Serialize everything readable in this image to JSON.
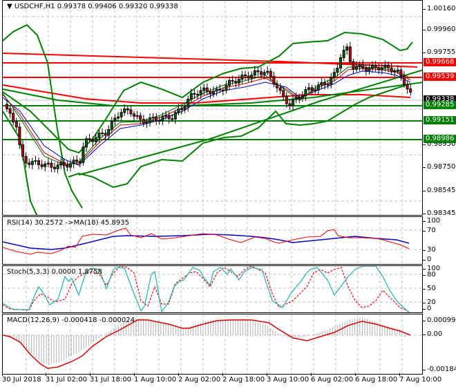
{
  "main": {
    "symbol_label": "USDCHF,H1",
    "ohlc": "0.99378 0.99406 0.99320 0.99338",
    "price_ticks": [
      "1.00160",
      "0.99960",
      "0.99755",
      "0.98950",
      "0.98750",
      "0.98545",
      "0.98345"
    ],
    "price_badges": [
      {
        "value": "0.99668",
        "color": "#ff0000"
      },
      {
        "value": "0.99539",
        "color": "#ff0000"
      },
      {
        "value": "0.99338",
        "color": "#000000"
      },
      {
        "value": "0.99285",
        "color": "#008000"
      },
      {
        "value": "0.99151",
        "color": "#008000"
      },
      {
        "value": "0.98986",
        "color": "#008000"
      }
    ]
  },
  "rsi": {
    "label": "RSI(14) 30.2572  ->MA(18) 45.8935",
    "ticks": [
      "100",
      "70",
      "30",
      "0"
    ]
  },
  "stoch": {
    "label": "Stoch(5,3,3) 0.0000 1.8758",
    "ticks": [
      "100",
      "80",
      "50",
      "20",
      "0"
    ]
  },
  "macd": {
    "label": "MACD(12,26,9) -0.000418 -0.000024",
    "ticks": [
      "0.000992",
      "0.00",
      "-0.001841"
    ]
  },
  "xaxis": {
    "labels": [
      "30 Jul 2018",
      "31 Jul 02:00",
      "31 Jul 18:00",
      "1 Aug 10:00",
      "2 Aug 02:00",
      "2 Aug 18:00",
      "3 Aug 10:00",
      "6 Aug 02:00",
      "6 Aug 18:00",
      "7 Aug 10:00"
    ]
  },
  "chart_data": [
    {
      "type": "candlestick",
      "title": "USDCHF,H1",
      "ylim": [
        0.983,
        1.0018
      ],
      "x": [
        "30 Jul 2018",
        "31 Jul 02:00",
        "31 Jul 18:00",
        "1 Aug 10:00",
        "2 Aug 02:00",
        "2 Aug 18:00",
        "3 Aug 10:00",
        "6 Aug 02:00",
        "6 Aug 18:00",
        "7 Aug 10:00"
      ],
      "approx_close": [
        0.9935,
        0.988,
        0.9905,
        0.991,
        0.992,
        0.9945,
        0.9925,
        0.9965,
        0.9955,
        0.9934
      ],
      "last_ohlc": {
        "open": 0.99378,
        "high": 0.99406,
        "low": 0.9932,
        "close": 0.99338
      },
      "horizontal_levels": {
        "resistance_red": [
          0.99668,
          0.99539
        ],
        "support_green": [
          0.99285,
          0.99151,
          0.98986
        ]
      },
      "overlays": [
        "Bollinger Bands (green)",
        "Moving averages (red/blue/green)",
        "Trend lines"
      ]
    },
    {
      "type": "line",
      "title": "RSI(14)",
      "ylim": [
        0,
        100
      ],
      "series": [
        {
          "name": "RSI(14)",
          "color": "#ff0000",
          "values": [
            45,
            32,
            28,
            33,
            38,
            55,
            62,
            58,
            60,
            72,
            57,
            50,
            60,
            66,
            58,
            30
          ]
        },
        {
          "name": "MA(18)",
          "color": "#0000cc",
          "values": [
            55,
            45,
            40,
            38,
            42,
            55,
            60,
            61,
            60,
            62,
            55,
            52,
            57,
            62,
            58,
            46
          ]
        }
      ],
      "levels": [
        30,
        70
      ],
      "last": {
        "rsi": 30.2572,
        "ma": 45.8935
      }
    },
    {
      "type": "line",
      "title": "Stoch(5,3,3)",
      "ylim": [
        0,
        100
      ],
      "series": [
        {
          "name": "%K",
          "color": "#20b2aa",
          "values": [
            20,
            0,
            0,
            55,
            40,
            20,
            85,
            60,
            100,
            100,
            20,
            85,
            10,
            70,
            100,
            90,
            40,
            100,
            15,
            75,
            5,
            55,
            100,
            90,
            100,
            0,
            30,
            60,
            0
          ]
        },
        {
          "name": "%D",
          "color": "#ff0000",
          "values": [
            20,
            5,
            0,
            40,
            45,
            25,
            75,
            70,
            90,
            100,
            35,
            75,
            25,
            60,
            95,
            95,
            55,
            90,
            30,
            65,
            15,
            50,
            95,
            95,
            95,
            15,
            25,
            55,
            2
          ]
        }
      ],
      "levels": [
        20,
        50,
        80
      ],
      "last": {
        "k": 0.0,
        "d": 1.8758
      }
    },
    {
      "type": "bar+line",
      "title": "MACD(12,26,9)",
      "ylim": [
        -0.001841,
        0.000992
      ],
      "series": [
        {
          "name": "MACD histogram",
          "color": "#c0c0c0",
          "values": [
            0.0,
            -0.0008,
            -0.0016,
            -0.0015,
            -0.0008,
            0.0004,
            0.0009,
            0.0008,
            0.0009,
            0.0003,
            -0.0003,
            0.0004,
            0.0009,
            0.0006,
            0.0003,
            -0.0004
          ]
        },
        {
          "name": "Signal",
          "color": "#ff0000",
          "values": [
            0.0,
            -0.001,
            -0.0017,
            -0.0012,
            -0.0002,
            0.0008,
            0.0006,
            0.0009,
            0.0009,
            0.0002,
            -0.0003,
            0.0001,
            0.0007,
            0.0005,
            0.0003,
            -2e-05
          ]
        }
      ],
      "last": {
        "macd": -0.000418,
        "signal": -2.4e-05
      }
    }
  ]
}
